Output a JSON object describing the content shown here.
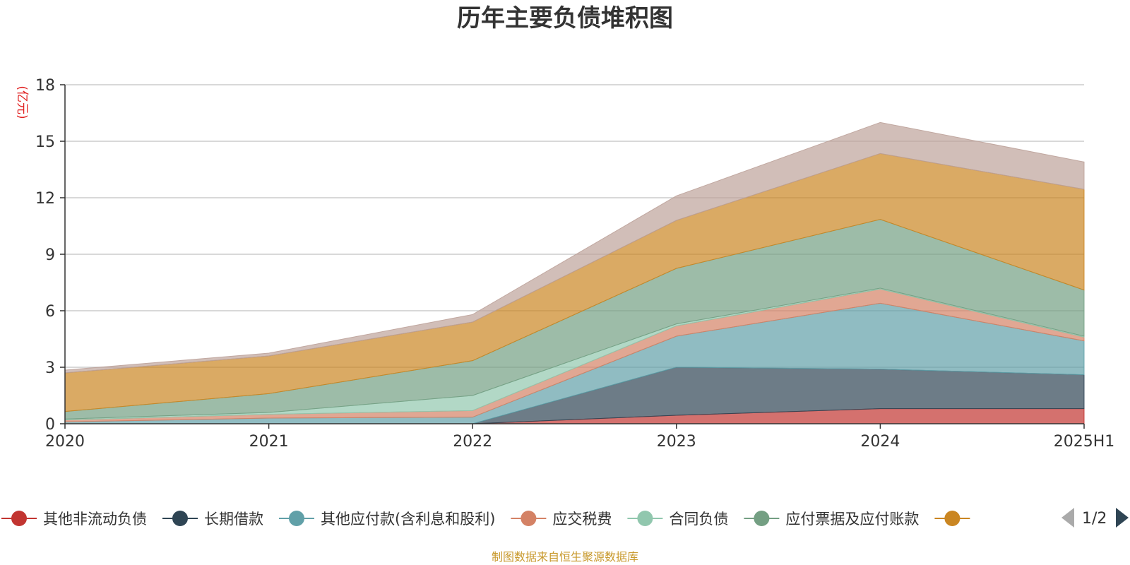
{
  "chart_data": {
    "type": "area",
    "stacked": true,
    "title": "历年主要负债堆积图",
    "unit": "(亿元)",
    "x": [
      "2020",
      "2021",
      "2022",
      "2023",
      "2024",
      "2025H1"
    ],
    "ylim": [
      0,
      18
    ],
    "yticks": [
      0,
      3,
      6,
      9,
      12,
      15,
      18
    ],
    "grid": true,
    "legend_position": "bottom",
    "series": [
      {
        "name": "其他非流动负债",
        "color": "#c23531",
        "values": [
          0,
          0,
          0,
          0.45,
          0.8,
          0.8
        ]
      },
      {
        "name": "长期借款",
        "color": "#2f4554",
        "values": [
          0,
          0,
          0,
          2.55,
          2.1,
          1.8
        ]
      },
      {
        "name": "其他应付款(含利息和股利)",
        "color": "#61a0a8",
        "values": [
          0.1,
          0.3,
          0.35,
          1.65,
          3.5,
          1.8
        ]
      },
      {
        "name": "应交税费",
        "color": "#d48265",
        "values": [
          0.1,
          0.2,
          0.35,
          0.55,
          0.75,
          0.2
        ]
      },
      {
        "name": "合同负债",
        "color": "#91c7ae",
        "values": [
          0.05,
          0.1,
          0.8,
          0.1,
          0.05,
          0.05
        ]
      },
      {
        "name": "应付票据及应付账款",
        "color": "#749f83",
        "values": [
          0.4,
          1.0,
          1.85,
          2.95,
          3.65,
          2.45
        ]
      },
      {
        "name": "",
        "color": "#ca8622",
        "values": [
          2.05,
          2.0,
          2.05,
          2.55,
          3.5,
          5.35
        ]
      },
      {
        "name": "",
        "color": "#bda29a",
        "values": [
          0.15,
          0.15,
          0.4,
          1.3,
          1.65,
          1.45
        ]
      }
    ],
    "legend_visible_count": 7
  },
  "legend": {
    "items": [
      "其他非流动负债",
      "长期借款",
      "其他应付款(含利息和股利)",
      "应交税费",
      "合同负债",
      "应付票据及应付账款",
      ""
    ],
    "page_label": "1/2"
  },
  "source_note": "制图数据来自恒生聚源数据库"
}
